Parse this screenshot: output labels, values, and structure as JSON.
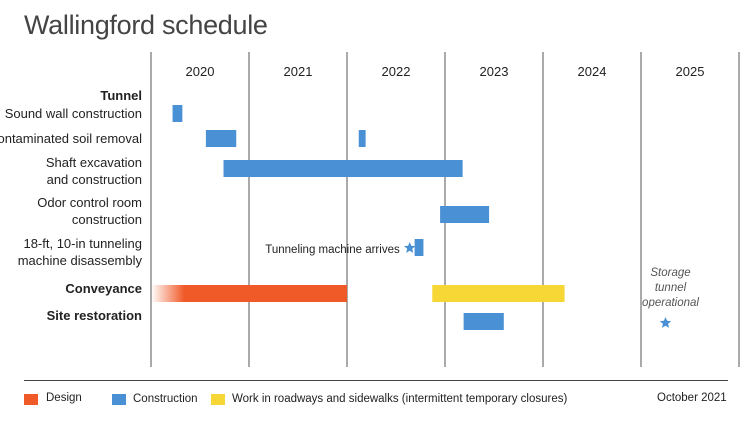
{
  "title": "Wallingford schedule",
  "chart_data": {
    "type": "gantt",
    "x_axis": {
      "years": [
        "2020",
        "2021",
        "2022",
        "2023",
        "2024",
        "2025"
      ],
      "range": [
        2019.5,
        2025.5
      ]
    },
    "groups": [
      {
        "label": "Tunnel",
        "is_heading": true
      },
      {
        "label": "Sound wall construction",
        "bars": [
          {
            "start": 2019.72,
            "end": 2019.82,
            "type": "Construction"
          }
        ]
      },
      {
        "label": "Contaminated soil removal",
        "bars": [
          {
            "start": 2020.06,
            "end": 2020.37,
            "type": "Construction"
          },
          {
            "start": 2021.62,
            "end": 2021.69,
            "type": "Construction"
          }
        ]
      },
      {
        "label_lines": [
          "Shaft excavation",
          "and construction"
        ],
        "bars": [
          {
            "start": 2020.24,
            "end": 2022.68,
            "type": "Construction"
          }
        ]
      },
      {
        "label_lines": [
          "Odor control room",
          "construction"
        ],
        "bars": [
          {
            "start": 2022.45,
            "end": 2022.95,
            "type": "Construction"
          }
        ]
      },
      {
        "label_lines": [
          "18-ft, 10-in tunneling",
          "machine disassembly"
        ],
        "bars": [
          {
            "start": 2022.19,
            "end": 2022.28,
            "type": "Construction"
          }
        ]
      },
      {
        "label": "Conveyance",
        "is_heading": true,
        "bars": [
          {
            "start": 2019.5,
            "end": 2021.5,
            "type": "Design"
          },
          {
            "start": 2022.37,
            "end": 2023.72,
            "type": "Work in roadways and sidewalks (intermittent temporary closures)"
          }
        ]
      },
      {
        "label": "Site restoration",
        "is_heading": true,
        "bars": [
          {
            "start": 2022.69,
            "end": 2023.1,
            "type": "Construction"
          }
        ]
      }
    ],
    "milestones": [
      {
        "label": "Tunneling machine arrives",
        "date": 2022.14
      },
      {
        "label_lines": [
          "Storage",
          "tunnel",
          "operational"
        ],
        "date": 2024.75
      }
    ]
  },
  "legend": {
    "items": [
      {
        "label": "Design",
        "color": "#f05a28"
      },
      {
        "label": "Construction",
        "color": "#4a90d4"
      },
      {
        "label": "Work in roadways and sidewalks (intermittent temporary closures)",
        "color": "#f7d736"
      }
    ],
    "date": "October 2021"
  },
  "colors": {
    "grid": "#555555",
    "milestone": "#4a90d4"
  }
}
